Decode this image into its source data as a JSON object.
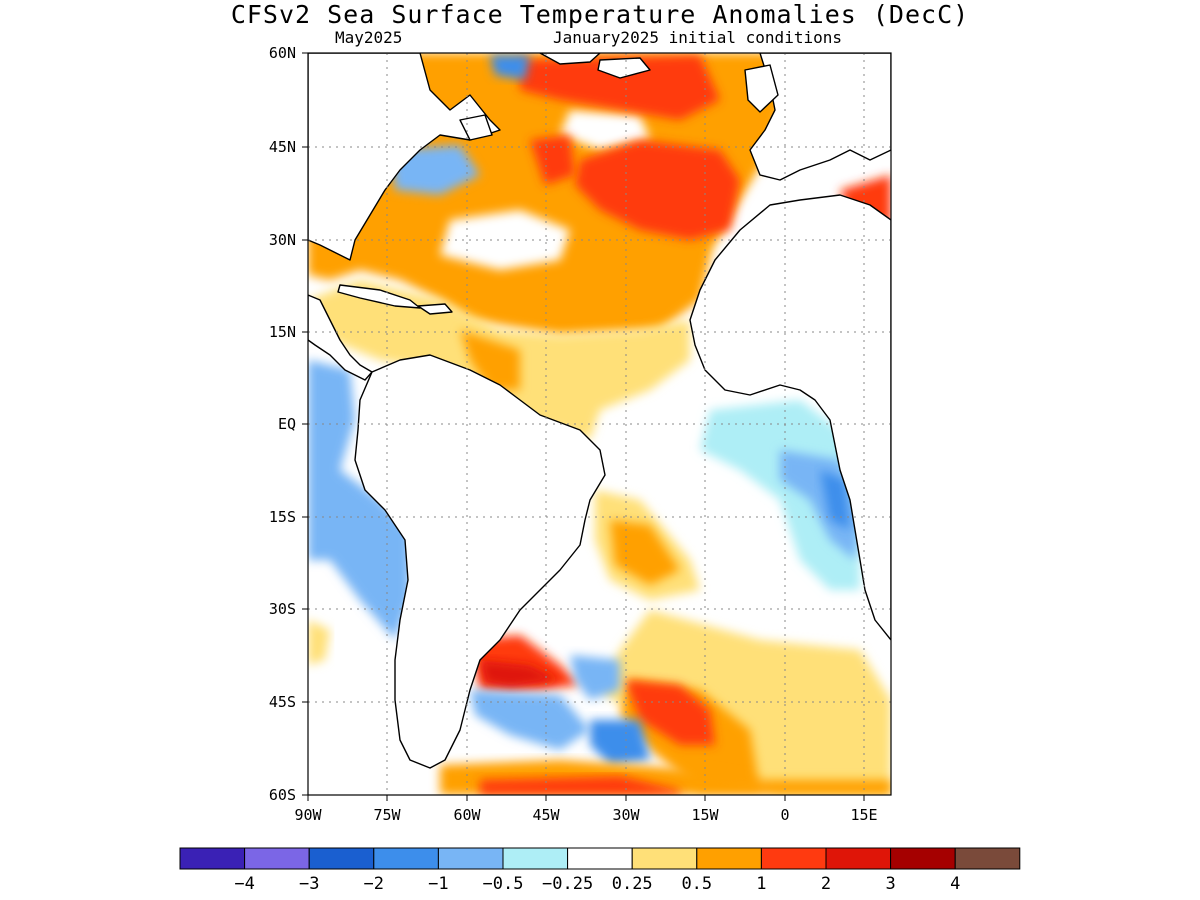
{
  "title": "CFSv2 Sea Surface Temperature Anomalies (DecC)",
  "subtitle_left": "May2025",
  "subtitle_right": "January2025 initial conditions",
  "map": {
    "type": "filled-contour-map",
    "region": "Atlantic Ocean",
    "lon_range": [
      -90,
      20
    ],
    "lat_range": [
      -60,
      60
    ],
    "grid": "dotted",
    "y_ticks": [
      "60N",
      "45N",
      "30N",
      "15N",
      "EQ",
      "15S",
      "30S",
      "45S",
      "60S"
    ],
    "x_ticks": [
      "90W",
      "75W",
      "60W",
      "45W",
      "30W",
      "15W",
      "0",
      "15E"
    ]
  },
  "colorbar": {
    "colors": [
      "#3a21b5",
      "#7b66e6",
      "#1a5fd0",
      "#3d8eeb",
      "#78b5f5",
      "#aeeef6",
      "#ffffff",
      "#ffe078",
      "#ffa000",
      "#ff3a10",
      "#df1508",
      "#a50000",
      "#7a4a3a"
    ],
    "labels": [
      "-4",
      "-3",
      "-2",
      "-1",
      "-0.5",
      "-0.25",
      "0.25",
      "0.5",
      "1",
      "2",
      "3",
      "4"
    ]
  }
}
